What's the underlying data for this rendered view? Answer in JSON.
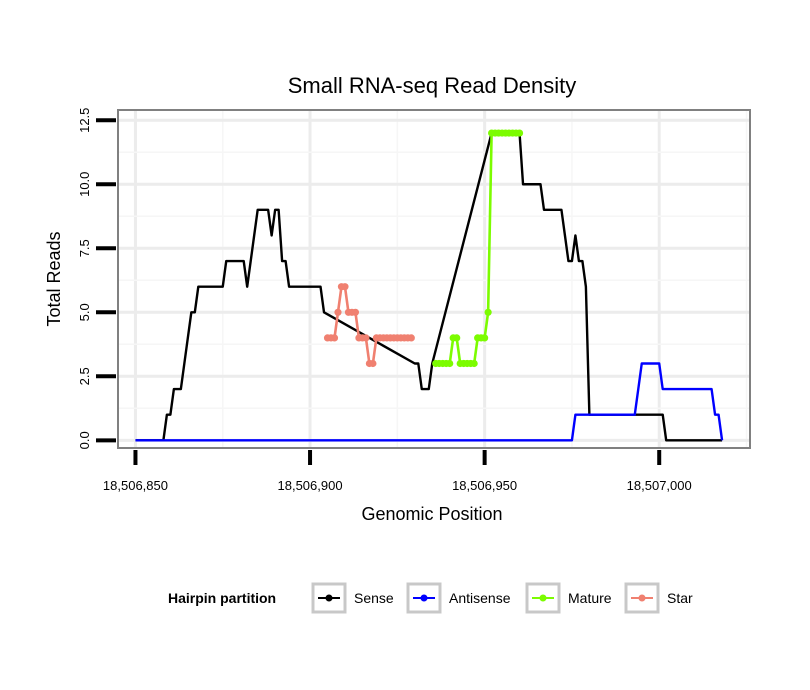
{
  "chart_data": {
    "type": "line",
    "title": "Small RNA-seq Read Density",
    "xlabel": "Genomic Position",
    "ylabel": "Total Reads",
    "xlim": [
      18506845,
      18507026
    ],
    "ylim": [
      -0.3,
      12.9
    ],
    "x_ticks": [
      18506850,
      18506900,
      18506950,
      18507000
    ],
    "x_tick_labels": [
      "18,506,850",
      "18,506,900",
      "18,506,950",
      "18,507,000"
    ],
    "y_ticks": [
      0,
      2.5,
      5,
      7.5,
      10,
      12.5
    ],
    "y_tick_labels": [
      "0.0",
      "2.5",
      "5.0",
      "7.5",
      "10.0",
      "12.5"
    ],
    "grid": true,
    "legend": {
      "title": "Hairpin partition",
      "position": "bottom",
      "entries": [
        {
          "label": "Sense",
          "color": "#000000"
        },
        {
          "label": "Antisense",
          "color": "#0000ff"
        },
        {
          "label": "Mature",
          "color": "#7cfc00"
        },
        {
          "label": "Star",
          "color": "#f08070"
        }
      ]
    },
    "series": [
      {
        "name": "Sense",
        "color": "#000000",
        "x": [
          18506850,
          18506858,
          18506859,
          18506860,
          18506861,
          18506862,
          18506863,
          18506864,
          18506865,
          18506866,
          18506867,
          18506868,
          18506875,
          18506876,
          18506877,
          18506880,
          18506881,
          18506882,
          18506883,
          18506884,
          18506885,
          18506886,
          18506887,
          18506888,
          18506889,
          18506890,
          18506891,
          18506892,
          18506893,
          18506894,
          18506895,
          18506896,
          18506897,
          18506898,
          18506899,
          18506900,
          18506901,
          18506902,
          18506903,
          18506904,
          18506930,
          18506931,
          18506932,
          18506933,
          18506934,
          18506935,
          18506952,
          18506953,
          18506954,
          18506955,
          18506960,
          18506961,
          18506962,
          18506963,
          18506964,
          18506965,
          18506966,
          18506967,
          18506968,
          18506969,
          18506970,
          18506971,
          18506972,
          18506973,
          18506974,
          18506975,
          18506976,
          18506977,
          18506978,
          18506979,
          18506980,
          18506981,
          18506982,
          18506983,
          18506984,
          18506985,
          18506986,
          18506987,
          18506988,
          18506989,
          18506990,
          18506991,
          18506992,
          18506993,
          18506994,
          18506995,
          18506996,
          18506997,
          18506998,
          18506999,
          18507000,
          18507001,
          18507002,
          18507003,
          18507004,
          18507005,
          18507006,
          18507007,
          18507008,
          18507009,
          18507010,
          18507011,
          18507012,
          18507013,
          18507014,
          18507015,
          18507016,
          18507017,
          18507018
        ],
        "y": [
          0,
          0,
          1,
          1,
          2,
          2,
          2,
          3,
          4,
          5,
          5,
          6,
          6,
          7,
          7,
          7,
          7,
          6,
          7,
          8,
          9,
          9,
          9,
          9,
          8,
          9,
          9,
          7,
          7,
          6,
          6,
          6,
          6,
          6,
          6,
          6,
          6,
          6,
          6,
          5,
          3,
          3,
          2,
          2,
          2,
          3,
          12,
          12,
          12,
          12,
          12,
          10,
          10,
          10,
          10,
          10,
          10,
          9,
          9,
          9,
          9,
          9,
          9,
          8,
          7,
          7,
          8,
          7,
          7,
          6,
          1,
          1,
          1,
          1,
          1,
          1,
          1,
          1,
          1,
          1,
          1,
          1,
          1,
          1,
          1,
          1,
          1,
          1,
          1,
          1,
          1,
          1,
          0,
          0,
          0,
          0,
          0,
          0,
          0,
          0,
          0,
          0,
          0,
          0,
          0,
          0,
          0,
          0,
          0
        ]
      },
      {
        "name": "Antisense",
        "color": "#0000ff",
        "x": [
          18506850,
          18506975,
          18506976,
          18506992,
          18506993,
          18506994,
          18506995,
          18506996,
          18506997,
          18506998,
          18506999,
          18507000,
          18507001,
          18507002,
          18507003,
          18507004,
          18507005,
          18507006,
          18507007,
          18507008,
          18507009,
          18507010,
          18507011,
          18507012,
          18507013,
          18507014,
          18507015,
          18507016,
          18507017,
          18507018
        ],
        "y": [
          0,
          0,
          1,
          1,
          1,
          2,
          3,
          3,
          3,
          3,
          3,
          3,
          2,
          2,
          2,
          2,
          2,
          2,
          2,
          2,
          2,
          2,
          2,
          2,
          2,
          2,
          2,
          1,
          1,
          0
        ]
      },
      {
        "name": "Mature",
        "color": "#7cfc00",
        "x": [
          18506936,
          18506937,
          18506938,
          18506939,
          18506940,
          18506941,
          18506942,
          18506943,
          18506944,
          18506945,
          18506946,
          18506947,
          18506948,
          18506949,
          18506950,
          18506951,
          18506952,
          18506953,
          18506954,
          18506955,
          18506956,
          18506957,
          18506958,
          18506959,
          18506960
        ],
        "y": [
          3,
          3,
          3,
          3,
          3,
          4,
          4,
          3,
          3,
          3,
          3,
          3,
          4,
          4,
          4,
          5,
          12,
          12,
          12,
          12,
          12,
          12,
          12,
          12,
          12
        ]
      },
      {
        "name": "Star",
        "color": "#f08070",
        "x": [
          18506905,
          18506906,
          18506907,
          18506908,
          18506909,
          18506910,
          18506911,
          18506912,
          18506913,
          18506914,
          18506915,
          18506916,
          18506917,
          18506918,
          18506919,
          18506920,
          18506921,
          18506922,
          18506923,
          18506924,
          18506925,
          18506926,
          18506927,
          18506928,
          18506929
        ],
        "y": [
          4,
          4,
          4,
          5,
          6,
          6,
          5,
          5,
          5,
          4,
          4,
          4,
          3,
          3,
          4,
          4,
          4,
          4,
          4,
          4,
          4,
          4,
          4,
          4,
          4
        ]
      }
    ]
  }
}
